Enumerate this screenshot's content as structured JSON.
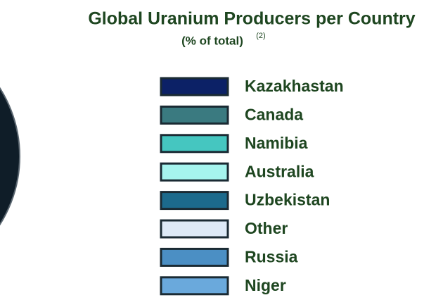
{
  "chart_data": {
    "type": "pie",
    "title": "Global Uranium Producers per Country",
    "subtitle": "(% of total)",
    "note": "(2)",
    "categories": [
      "Kazakhastan",
      "Canada",
      "Namibia",
      "Australia",
      "Uzbekistan",
      "Other",
      "Russia",
      "Niger"
    ],
    "colors": [
      "#0c2166",
      "#3a7a80",
      "#45c6c0",
      "#a6f4ee",
      "#1c6a8c",
      "#dde9f6",
      "#4b8fc4",
      "#6aa9dc"
    ],
    "legend": "right"
  }
}
